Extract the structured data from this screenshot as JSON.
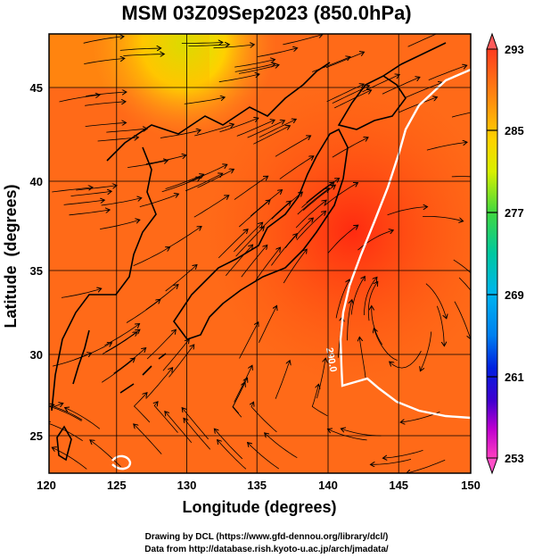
{
  "title": "MSM 03Z09Sep2023 (850.0hPa)",
  "x_axis": {
    "label": "Longitude (degrees)",
    "ticks": [
      "120",
      "125",
      "130",
      "135",
      "140",
      "145",
      "150"
    ]
  },
  "y_axis": {
    "label": "Latitude  (degrees)",
    "ticks": [
      "25",
      "30",
      "35",
      "40",
      "45"
    ]
  },
  "colorbar": {
    "labels": [
      "293",
      "285",
      "277",
      "269",
      "261",
      "253"
    ]
  },
  "contour_label": "290.0",
  "credits": {
    "line1": "Drawing by DCL (https://www.gfd-dennou.org/library/dcl/)",
    "line2": "Data from http://database.rish.kyoto-u.ac.jp/arch/jmadata/"
  },
  "colors": {
    "warm_field": "#ff5a10",
    "cool_field": "#ffd000",
    "coast": "#000000",
    "contour": "#ffffff"
  }
}
